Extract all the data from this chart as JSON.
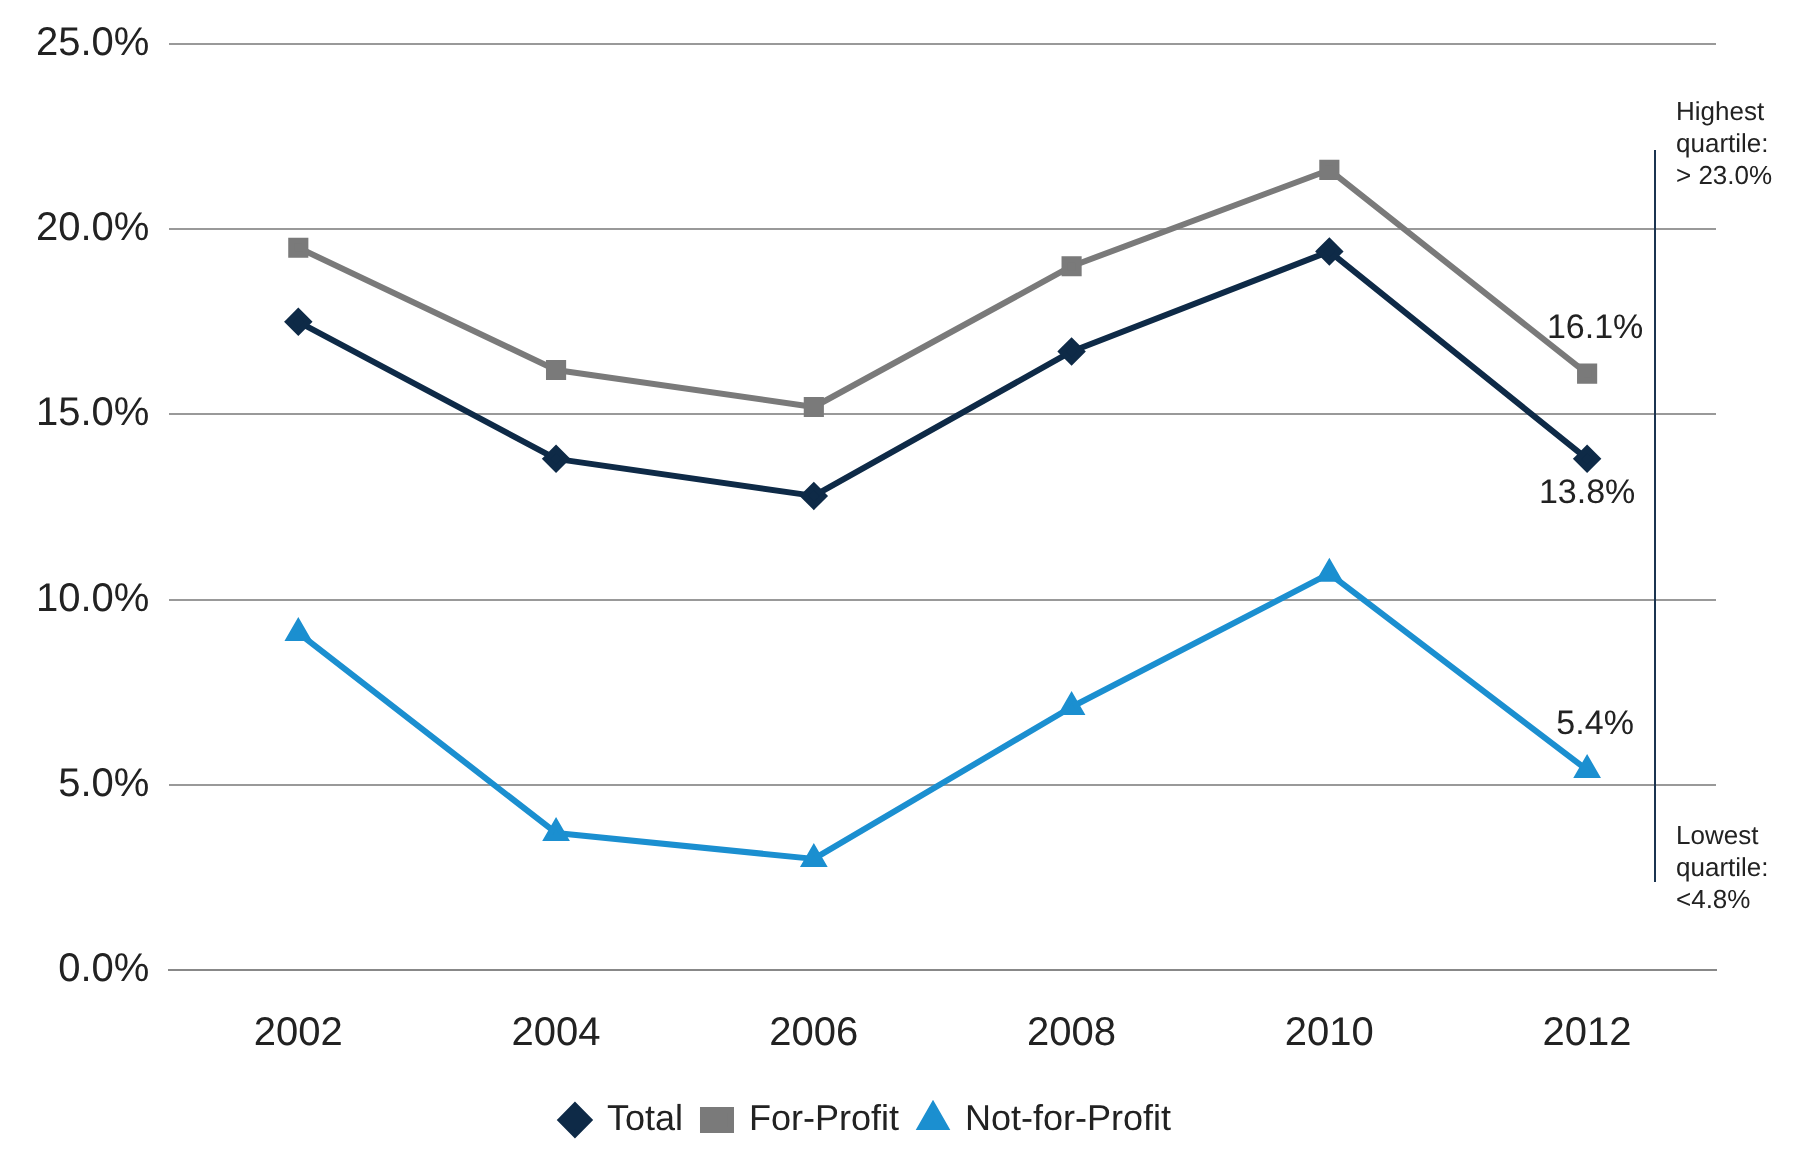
{
  "chart_data": {
    "type": "line",
    "categories": [
      "2002",
      "2004",
      "2006",
      "2008",
      "2010",
      "2012"
    ],
    "series": [
      {
        "name": "Total",
        "color": "#0e2a47",
        "marker": "diamond",
        "values": [
          17.5,
          13.8,
          12.8,
          16.7,
          19.4,
          13.8
        ],
        "value_labels": [
          null,
          null,
          null,
          null,
          null,
          "13.8%"
        ]
      },
      {
        "name": "For-Profit",
        "color": "#7a7a7a",
        "marker": "square",
        "values": [
          19.5,
          16.2,
          15.2,
          19.0,
          21.6,
          16.1
        ],
        "value_labels": [
          null,
          null,
          null,
          null,
          null,
          "16.1%"
        ]
      },
      {
        "name": "Not-for-Profit",
        "color": "#1b8fd0",
        "marker": "triangle",
        "values": [
          9.1,
          3.7,
          3.0,
          7.1,
          10.7,
          5.4
        ],
        "value_labels": [
          null,
          null,
          null,
          null,
          null,
          "5.4%"
        ]
      }
    ],
    "ylim": [
      0,
      25
    ],
    "yticks": [
      {
        "value": 0,
        "label": "0.0%"
      },
      {
        "value": 5,
        "label": "5.0%"
      },
      {
        "value": 10,
        "label": "10.0%"
      },
      {
        "value": 15,
        "label": "15.0%"
      },
      {
        "value": 20,
        "label": "20.0%"
      },
      {
        "value": 25,
        "label": "25.0%"
      }
    ],
    "grid": "y",
    "legend": "bottom",
    "line_style": "solid",
    "annotations": [
      "Highest quartile: > 23.0%",
      "Lowest quartile: <4.8%"
    ]
  }
}
